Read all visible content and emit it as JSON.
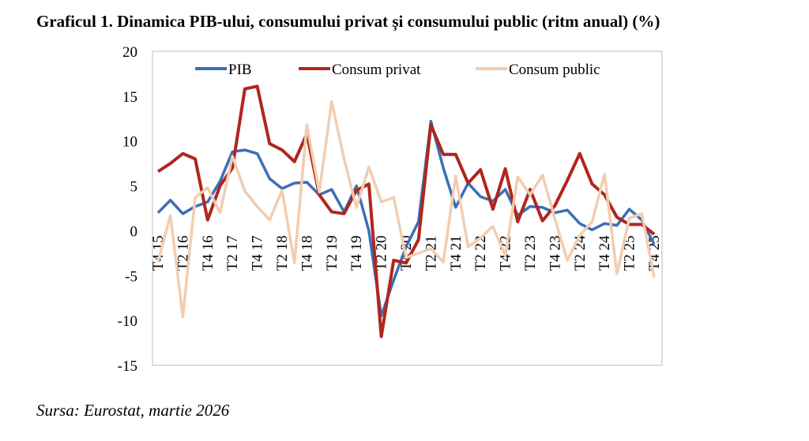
{
  "chart_data": {
    "type": "line",
    "title": "Graficul 1. Dinamica PIB-ului, consumului privat și consumului public (ritm anual) (%)",
    "source": "Sursa: Eurostat, martie 2026",
    "categories": [
      "T4 15",
      null,
      "T2 16",
      null,
      "T4 16",
      null,
      "T2 17",
      null,
      "T4 17",
      null,
      "T2 18",
      null,
      "T4 18",
      null,
      "T2 19",
      null,
      "T4 19",
      null,
      "T2 20",
      null,
      "T4 20",
      null,
      "T2 21",
      null,
      "T4 21",
      null,
      "T2 22",
      null,
      "T4 22",
      null,
      "T2 23",
      null,
      "T4 23",
      null,
      "T2 24",
      null,
      "T4 24",
      null,
      "T2 25",
      null,
      "T4 25"
    ],
    "series": [
      {
        "name": "PIB",
        "color": "#3a6fb7",
        "values": [
          2.0,
          3.4,
          1.9,
          2.7,
          3.2,
          5.5,
          8.8,
          9.0,
          8.6,
          5.8,
          4.7,
          5.3,
          5.4,
          4.0,
          4.6,
          2.1,
          5.0,
          0.0,
          -9.5,
          -5.5,
          -1.8,
          1.0,
          12.2,
          7.0,
          2.6,
          5.3,
          3.8,
          3.3,
          4.6,
          1.7,
          2.7,
          2.6,
          2.0,
          2.3,
          0.8,
          0.1,
          0.8,
          0.6,
          2.4,
          1.2,
          -1.5
        ]
      },
      {
        "name": "Consum privat",
        "color": "#b0261d",
        "values": [
          6.6,
          7.5,
          8.6,
          8.0,
          1.2,
          5.0,
          7.0,
          15.8,
          16.1,
          9.7,
          9.0,
          7.7,
          10.8,
          4.0,
          2.1,
          1.9,
          4.5,
          5.2,
          -11.8,
          -3.3,
          -3.6,
          -1.0,
          11.8,
          8.5,
          8.5,
          5.3,
          6.8,
          2.4,
          6.9,
          1.0,
          4.6,
          1.1,
          2.8,
          5.6,
          8.6,
          5.2,
          4.0,
          1.5,
          0.7,
          0.7,
          -0.4
        ]
      },
      {
        "name": "Consum public",
        "color": "#f2cdb0",
        "values": [
          -3.5,
          1.7,
          -9.6,
          3.7,
          4.8,
          2.0,
          8.3,
          4.4,
          2.7,
          1.2,
          4.5,
          -3.6,
          11.8,
          4.3,
          14.4,
          8.0,
          2.6,
          7.1,
          3.2,
          3.7,
          -3.0,
          -2.5,
          -2.0,
          -3.5,
          6.1,
          -1.8,
          -0.8,
          0.5,
          -2.8,
          6.0,
          4.0,
          6.2,
          1.3,
          -3.3,
          -0.5,
          1.0,
          6.3,
          -4.8,
          1.4,
          1.9,
          -5.2
        ]
      }
    ],
    "ylim": [
      -15,
      20
    ],
    "yticks": [
      -15,
      -10,
      -5,
      0,
      5,
      10,
      15,
      20
    ],
    "grid": false,
    "legend": "top"
  }
}
